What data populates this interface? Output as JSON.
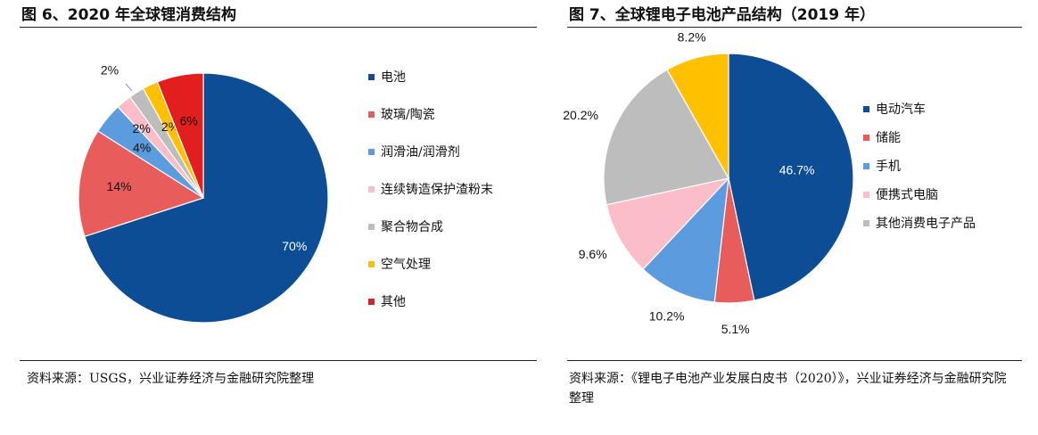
{
  "left": {
    "title": "图 6、2020 年全球锂消费结构",
    "source": "资料来源：USGS，兴业证券经济与金融研究院整理"
  },
  "right": {
    "title": "图 7、全球锂电子电池产品结构（2019 年）",
    "source": "资料来源：《锂电子电池产业发展白皮书（2020）》，兴业证券经济与金融研究院整理"
  },
  "chart_data": [
    {
      "type": "pie",
      "title": "图 6、2020 年全球锂消费结构",
      "legend_position": "right",
      "slices": [
        {
          "label": "电池",
          "value": 70,
          "value_label": "70%",
          "color": "#0d4d96"
        },
        {
          "label": "玻璃/陶瓷",
          "value": 14,
          "value_label": "14%",
          "color": "#e85c5c"
        },
        {
          "label": "润滑油/润滑剂",
          "value": 4,
          "value_label": "4%",
          "color": "#5b9bde"
        },
        {
          "label": "连续铸造保护渣粉末",
          "value": 2,
          "value_label": "2%",
          "color": "#fbbdc8"
        },
        {
          "label": "聚合物合成",
          "value": 2,
          "value_label": "2%",
          "color": "#bdbdbd"
        },
        {
          "label": "空气处理",
          "value": 2,
          "value_label": "2%",
          "color": "#ffc000"
        },
        {
          "label": "其他",
          "value": 6,
          "value_label": "6%",
          "color": "#e21e1e"
        }
      ]
    },
    {
      "type": "pie",
      "title": "图 7、全球锂电子电池产品结构（2019 年）",
      "legend_position": "right",
      "slices": [
        {
          "label": "电动汽车",
          "value": 46.7,
          "value_label": "46.7%",
          "color": "#0d4d96"
        },
        {
          "label": "储能",
          "value": 5.1,
          "value_label": "5.1%",
          "color": "#e85c5c"
        },
        {
          "label": "手机",
          "value": 10.2,
          "value_label": "10.2%",
          "color": "#5b9bde"
        },
        {
          "label": "便携式电脑",
          "value": 9.6,
          "value_label": "9.6%",
          "color": "#fbbdc8"
        },
        {
          "label": "其他消费电子产品",
          "value": 20.2,
          "value_label": "20.2%",
          "color": "#bdbdbd"
        },
        {
          "label": "",
          "value": 8.2,
          "value_label": "8.2%",
          "color": "#ffc000"
        }
      ]
    }
  ]
}
